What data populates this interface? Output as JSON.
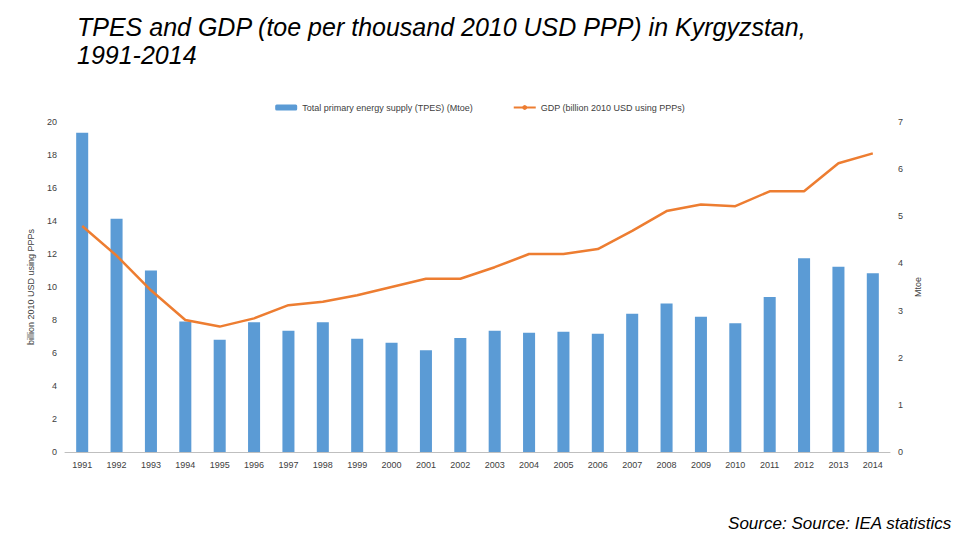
{
  "chart_data": {
    "type": "bar",
    "title": "TPES and GDP (toe per thousand 2010 USD PPP) in Kyrgyzstan, 1991-2014",
    "y_label": "billion 2010 USD using PPPs",
    "y2_label": "Mtoe",
    "annotations": [
      "Source: Source: IEA statistics"
    ],
    "categories": [
      "1991",
      "1992",
      "1993",
      "1994",
      "1995",
      "1996",
      "1997",
      "1998",
      "1999",
      "2000",
      "2001",
      "2002",
      "2003",
      "2004",
      "2005",
      "2006",
      "2007",
      "2008",
      "2009",
      "2010",
      "2011",
      "2012",
      "2013",
      "2014"
    ],
    "series": [
      {
        "name": "Total primary energy supply (TPES) (Mtoe)",
        "type": "bar",
        "axis": "y2",
        "color": "#5b9bd5",
        "values": [
          6.77,
          4.95,
          3.85,
          2.77,
          2.38,
          2.75,
          2.57,
          2.75,
          2.4,
          2.32,
          2.16,
          2.42,
          2.57,
          2.53,
          2.55,
          2.51,
          2.93,
          3.15,
          2.87,
          2.73,
          3.29,
          4.11,
          3.93,
          3.79
        ]
      },
      {
        "name": "GDP (billion 2010 USD using PPPs)",
        "type": "line",
        "color": "#ed7d31",
        "marker": "none",
        "values": [
          13.7,
          11.9,
          9.8,
          8.0,
          7.6,
          8.1,
          8.9,
          9.1,
          9.5,
          10.0,
          10.5,
          10.5,
          11.2,
          12.0,
          12.0,
          12.3,
          13.4,
          14.6,
          15.0,
          14.9,
          15.8,
          15.8,
          17.5,
          18.1
        ]
      }
    ],
    "ylim": [
      0,
      20
    ],
    "yticks": [
      0,
      2,
      4,
      6,
      8,
      10,
      12,
      14,
      16,
      18,
      20
    ],
    "y2lim": [
      0,
      7
    ],
    "y2ticks": [
      0,
      1,
      2,
      3,
      4,
      5,
      6,
      7
    ],
    "grid": false,
    "legend": "top"
  }
}
